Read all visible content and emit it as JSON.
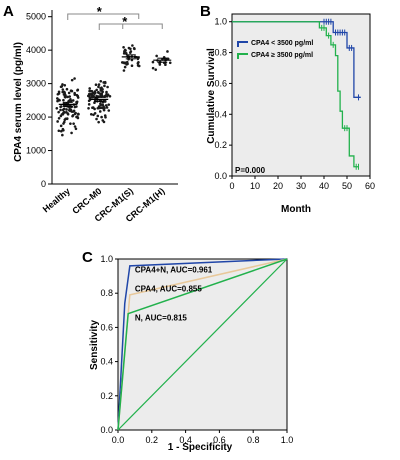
{
  "chart_data": [
    {
      "panel": "A",
      "type": "scatter",
      "ylabel": "CPA4 serum level (pg/ml)",
      "categories": [
        "Healthy",
        "CRC-M0",
        "CRC-M1(S)",
        "CRC-M1(H)"
      ],
      "yticks": [
        0,
        1000,
        2000,
        3000,
        4000,
        5000
      ],
      "ylim": [
        0,
        5200
      ],
      "means": [
        2380,
        2530,
        3800,
        3700
      ],
      "spread": [
        500,
        450,
        280,
        200
      ],
      "counts": [
        110,
        100,
        40,
        20
      ],
      "significance": [
        {
          "from": 0,
          "to": 2,
          "label": "*"
        },
        {
          "from": 1,
          "to": 2,
          "label": "*"
        }
      ],
      "colors": {
        "point": "#1a1a1a"
      }
    },
    {
      "panel": "B",
      "type": "line",
      "xlabel": "Month",
      "ylabel": "Cumulative Survival",
      "xticks": [
        0,
        10,
        20,
        30,
        40,
        50,
        60
      ],
      "yticks": [
        0.0,
        0.2,
        0.4,
        0.6,
        0.8,
        1.0
      ],
      "xlim": [
        0,
        60
      ],
      "ylim": [
        0,
        1.05
      ],
      "annotation": "P=0.000",
      "legend_position": "top-left",
      "series": [
        {
          "name": "CPA4 < 3500 pg/ml",
          "color": "#2046a8",
          "x": [
            0,
            44,
            44,
            50,
            50,
            53,
            53,
            56
          ],
          "y": [
            1.0,
            1.0,
            0.93,
            0.93,
            0.83,
            0.83,
            0.51,
            0.51
          ],
          "censor_x": [
            40,
            41,
            42,
            43,
            45,
            46,
            47,
            48,
            49,
            51,
            52,
            55
          ],
          "censor_y": [
            1.0,
            1.0,
            1.0,
            1.0,
            0.93,
            0.93,
            0.93,
            0.93,
            0.93,
            0.83,
            0.83,
            0.51
          ]
        },
        {
          "name": "CPA4 ≥ 3500 pg/ml",
          "color": "#22b14c",
          "x": [
            0,
            38,
            38,
            41,
            41,
            43,
            43,
            45,
            45,
            46,
            46,
            47,
            47,
            48,
            48,
            51,
            51,
            53,
            53,
            55
          ],
          "y": [
            1.0,
            1.0,
            0.96,
            0.96,
            0.91,
            0.91,
            0.85,
            0.85,
            0.78,
            0.78,
            0.55,
            0.55,
            0.42,
            0.42,
            0.31,
            0.31,
            0.13,
            0.13,
            0.06,
            0.06
          ],
          "censor_x": [
            39,
            40,
            42,
            44,
            49,
            50,
            54,
            55
          ],
          "censor_y": [
            0.96,
            0.96,
            0.91,
            0.85,
            0.31,
            0.31,
            0.06,
            0.06
          ]
        }
      ]
    },
    {
      "panel": "C",
      "type": "line",
      "xlabel": "1 - Specificity",
      "ylabel": "Sensitivity",
      "xticks": [
        0.0,
        0.2,
        0.4,
        0.6,
        0.8,
        1.0
      ],
      "yticks": [
        0.0,
        0.2,
        0.4,
        0.6,
        0.8,
        1.0
      ],
      "xlim": [
        0,
        1
      ],
      "ylim": [
        0,
        1
      ],
      "series": [
        {
          "name": "CPA4+N, AUC=0.961",
          "color": "#2046a8",
          "x": [
            0,
            0.04,
            0.07,
            1.0
          ],
          "y": [
            0,
            0.74,
            0.96,
            1.0
          ]
        },
        {
          "name": "CPA4, AUC=0.855",
          "color": "#e8c89a",
          "x": [
            0,
            0.07,
            1.0
          ],
          "y": [
            0,
            0.79,
            1.0
          ]
        },
        {
          "name": "N, AUC=0.815",
          "color": "#22b14c",
          "x": [
            0,
            0.06,
            1.0
          ],
          "y": [
            0,
            0.68,
            1.0
          ]
        }
      ],
      "reference_line": {
        "color": "#22b14c"
      }
    }
  ]
}
